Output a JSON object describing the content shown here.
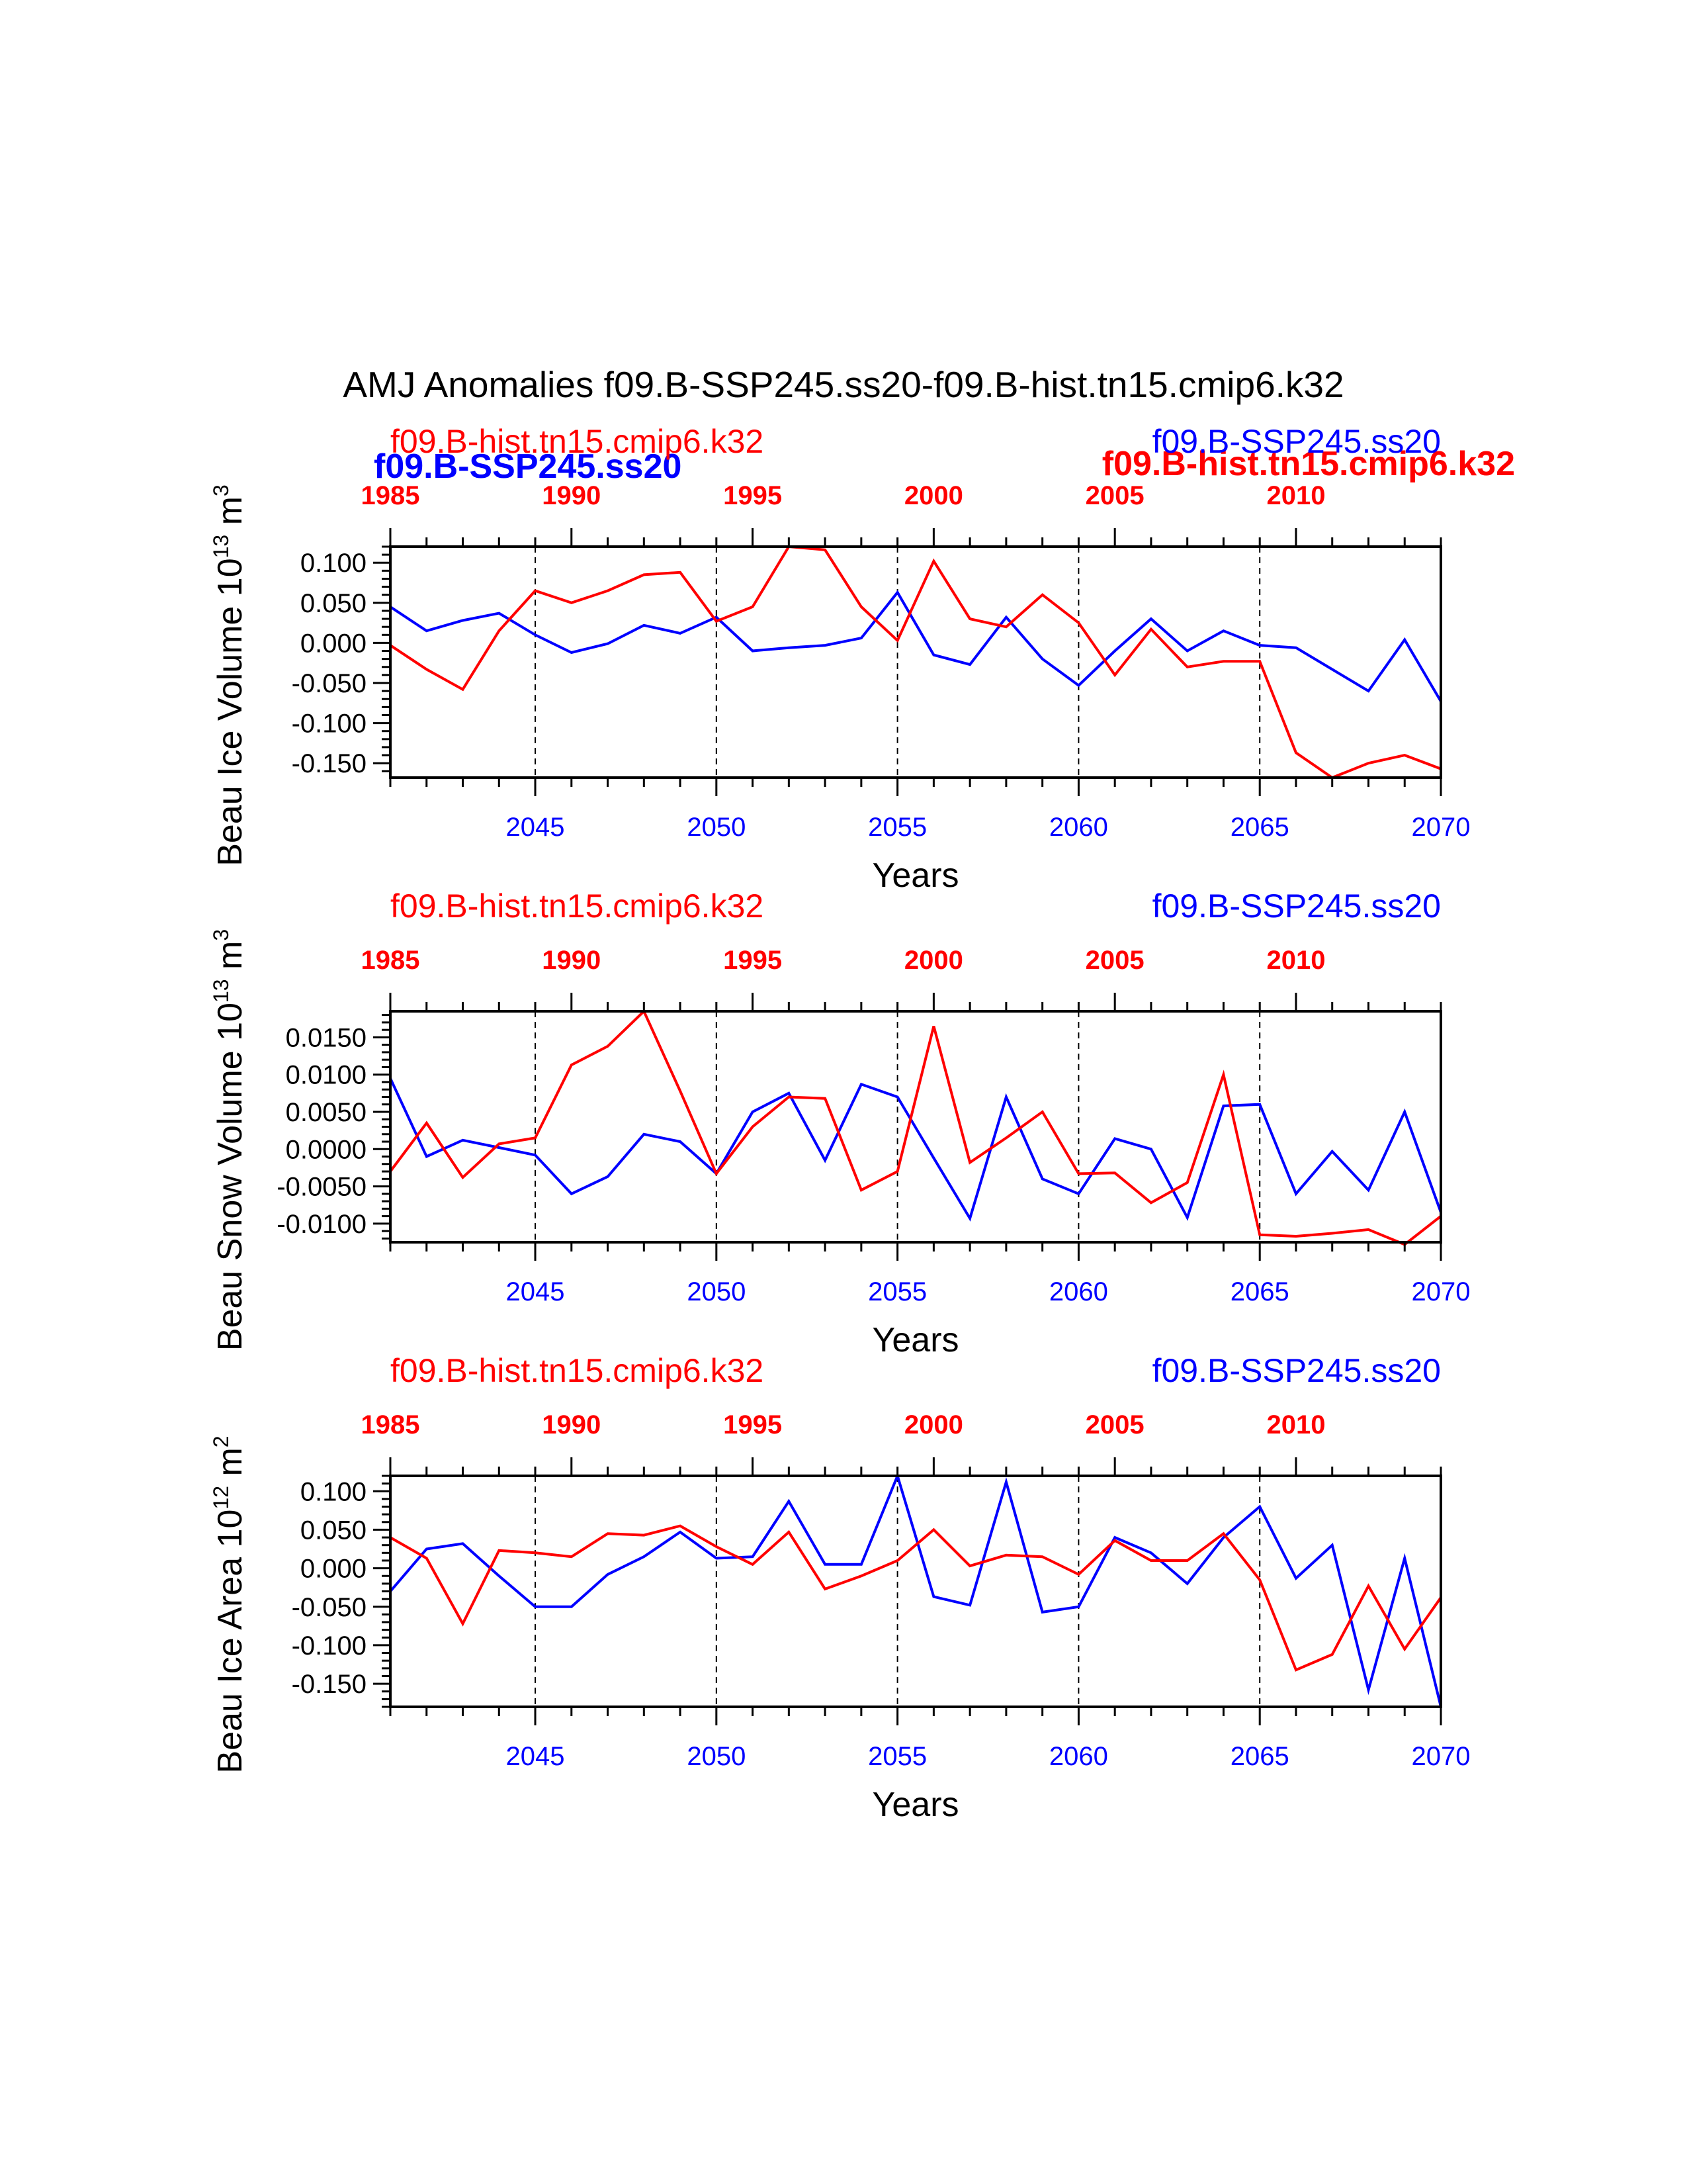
{
  "figure": {
    "title": "AMJ Anomalies f09.B-SSP245.ss20-f09.B-hist.tn15.cmip6.k32",
    "overlap_labels": {
      "blue_left": "f09.B-SSP245.ss20",
      "red_right": "f09.B-hist.tn15.cmip6.k32"
    }
  },
  "colors": {
    "ssp": "#0000ff",
    "hist": "#ff0000",
    "axis": "#000000"
  },
  "chart_data": [
    {
      "type": "line",
      "ylabel": "Beau Ice Volume 10",
      "ylabel_exp": "13",
      "ylabel_unit": " m",
      "ylabel_unit_exp": "3",
      "xlabel": "Years",
      "ylim": [
        -0.168,
        0.12
      ],
      "yticks": [
        0.1,
        0.05,
        0.0,
        -0.05,
        -0.1,
        -0.15
      ],
      "ytick_labels": [
        "0.100",
        "0.050",
        "0.000",
        "-0.050",
        "-0.100",
        "-0.150"
      ],
      "yminor_step": 0.01,
      "bottom_axis": {
        "xlim": [
          2041,
          2070
        ],
        "ticks": [
          2045,
          2050,
          2055,
          2060,
          2065,
          2070
        ],
        "tick_labels": [
          "2045",
          "2050",
          "2055",
          "2060",
          "2065",
          "2070"
        ]
      },
      "top_axis": {
        "xlim": [
          1985,
          2014
        ],
        "ticks": [
          1985,
          1990,
          1995,
          2000,
          2005,
          2010
        ],
        "tick_labels": [
          "1985",
          "1990",
          "1995",
          "2000",
          "2005",
          "2010"
        ]
      },
      "top_left_label": "f09.B-hist.tn15.cmip6.k32",
      "top_right_label": "f09.B-SSP245.ss20",
      "series": [
        {
          "name": "f09.B-SSP245.ss20",
          "axis": "bottom",
          "x": [
            2041,
            2042,
            2043,
            2044,
            2045,
            2046,
            2047,
            2048,
            2049,
            2050,
            2051,
            2052,
            2053,
            2054,
            2055,
            2056,
            2057,
            2058,
            2059,
            2060,
            2061,
            2062,
            2063,
            2064,
            2065,
            2066,
            2067,
            2068,
            2069,
            2070
          ],
          "values": [
            0.045,
            0.015,
            0.028,
            0.037,
            0.01,
            -0.012,
            -0.001,
            0.022,
            0.012,
            0.032,
            -0.01,
            -0.006,
            -0.003,
            0.006,
            0.063,
            -0.015,
            -0.027,
            0.032,
            -0.02,
            -0.053,
            -0.01,
            0.03,
            -0.01,
            0.015,
            -0.003,
            -0.006,
            -0.033,
            -0.06,
            0.004,
            -0.073
          ]
        },
        {
          "name": "f09.B-hist.tn15.cmip6.k32",
          "axis": "top",
          "x": [
            1985,
            1986,
            1987,
            1988,
            1989,
            1990,
            1991,
            1992,
            1993,
            1994,
            1995,
            1996,
            1997,
            1998,
            1999,
            2000,
            2001,
            2002,
            2003,
            2004,
            2005,
            2006,
            2007,
            2008,
            2009,
            2010,
            2011,
            2012,
            2013,
            2014
          ],
          "values": [
            -0.003,
            -0.033,
            -0.058,
            0.015,
            0.065,
            0.05,
            0.065,
            0.085,
            0.088,
            0.027,
            0.045,
            0.12,
            0.116,
            0.045,
            0.003,
            0.102,
            0.03,
            0.02,
            0.06,
            0.025,
            -0.04,
            0.017,
            -0.03,
            -0.023,
            -0.023,
            -0.137,
            -0.168,
            -0.15,
            -0.14,
            -0.157
          ]
        }
      ]
    },
    {
      "type": "line",
      "ylabel": "Beau Snow Volume 10",
      "ylabel_exp": "13",
      "ylabel_unit": " m",
      "ylabel_unit_exp": "3",
      "xlabel": "Years",
      "ylim": [
        -0.0125,
        0.0185
      ],
      "yticks": [
        0.015,
        0.01,
        0.005,
        0.0,
        -0.005,
        -0.01
      ],
      "ytick_labels": [
        "0.0150",
        "0.0100",
        "0.0050",
        "0.0000",
        "-0.0050",
        "-0.0100"
      ],
      "yminor_step": 0.001,
      "bottom_axis": {
        "xlim": [
          2041,
          2070
        ],
        "ticks": [
          2045,
          2050,
          2055,
          2060,
          2065,
          2070
        ],
        "tick_labels": [
          "2045",
          "2050",
          "2055",
          "2060",
          "2065",
          "2070"
        ]
      },
      "top_axis": {
        "xlim": [
          1985,
          2014
        ],
        "ticks": [
          1985,
          1990,
          1995,
          2000,
          2005,
          2010
        ],
        "tick_labels": [
          "1985",
          "1990",
          "1995",
          "2000",
          "2005",
          "2010"
        ]
      },
      "top_left_label": "f09.B-hist.tn15.cmip6.k32",
      "top_right_label": "f09.B-SSP245.ss20",
      "series": [
        {
          "name": "f09.B-SSP245.ss20",
          "axis": "bottom",
          "x": [
            2041,
            2042,
            2043,
            2044,
            2045,
            2046,
            2047,
            2048,
            2049,
            2050,
            2051,
            2052,
            2053,
            2054,
            2055,
            2056,
            2057,
            2058,
            2059,
            2060,
            2061,
            2062,
            2063,
            2064,
            2065,
            2066,
            2067,
            2068,
            2069,
            2070
          ],
          "values": [
            0.0095,
            -0.001,
            0.0012,
            0.0002,
            -0.0008,
            -0.006,
            -0.0037,
            0.002,
            0.001,
            -0.0033,
            0.005,
            0.0075,
            -0.0015,
            0.0087,
            0.007,
            -0.0012,
            -0.0093,
            0.007,
            -0.004,
            -0.006,
            0.0014,
            0.0,
            -0.0092,
            0.0058,
            0.006,
            -0.006,
            -0.0003,
            -0.0055,
            0.005,
            -0.0085
          ]
        },
        {
          "name": "f09.B-hist.tn15.cmip6.k32",
          "axis": "top",
          "x": [
            1985,
            1986,
            1987,
            1988,
            1989,
            1990,
            1991,
            1992,
            1993,
            1994,
            1995,
            1996,
            1997,
            1998,
            1999,
            2000,
            2001,
            2002,
            2003,
            2004,
            2005,
            2006,
            2007,
            2008,
            2009,
            2010,
            2011,
            2012,
            2013,
            2014
          ],
          "values": [
            -0.003,
            0.0035,
            -0.0038,
            0.0007,
            0.0015,
            0.0113,
            0.0138,
            0.0185,
            0.0078,
            -0.0033,
            0.003,
            0.007,
            0.0068,
            -0.0055,
            -0.003,
            0.0165,
            -0.0018,
            0.0015,
            0.005,
            -0.0033,
            -0.0032,
            -0.0072,
            -0.0045,
            0.01,
            -0.0115,
            -0.0117,
            -0.0113,
            -0.0108,
            -0.0128,
            -0.009
          ]
        }
      ]
    },
    {
      "type": "line",
      "ylabel": "Beau Ice Area 10",
      "ylabel_exp": "12",
      "ylabel_unit": " m",
      "ylabel_unit_exp": "2",
      "xlabel": "Years",
      "ylim": [
        -0.18,
        0.12
      ],
      "yticks": [
        0.1,
        0.05,
        0.0,
        -0.05,
        -0.1,
        -0.15
      ],
      "ytick_labels": [
        "0.100",
        "0.050",
        "0.000",
        "-0.050",
        "-0.100",
        "-0.150"
      ],
      "yminor_step": 0.01,
      "bottom_axis": {
        "xlim": [
          2041,
          2070
        ],
        "ticks": [
          2045,
          2050,
          2055,
          2060,
          2065,
          2070
        ],
        "tick_labels": [
          "2045",
          "2050",
          "2055",
          "2060",
          "2065",
          "2070"
        ]
      },
      "top_axis": {
        "xlim": [
          1985,
          2014
        ],
        "ticks": [
          1985,
          1990,
          1995,
          2000,
          2005,
          2010
        ],
        "tick_labels": [
          "1985",
          "1990",
          "1995",
          "2000",
          "2005",
          "2010"
        ]
      },
      "top_left_label": "f09.B-hist.tn15.cmip6.k32",
      "top_right_label": "f09.B-SSP245.ss20",
      "series": [
        {
          "name": "f09.B-SSP245.ss20",
          "axis": "bottom",
          "x": [
            2041,
            2042,
            2043,
            2044,
            2045,
            2046,
            2047,
            2048,
            2049,
            2050,
            2051,
            2052,
            2053,
            2054,
            2055,
            2056,
            2057,
            2058,
            2059,
            2060,
            2061,
            2062,
            2063,
            2064,
            2065,
            2066,
            2067,
            2068,
            2069,
            2070
          ],
          "values": [
            -0.03,
            0.025,
            0.032,
            -0.01,
            -0.05,
            -0.05,
            -0.008,
            0.015,
            0.047,
            0.013,
            0.015,
            0.087,
            0.005,
            0.005,
            0.12,
            -0.037,
            -0.048,
            0.112,
            -0.057,
            -0.05,
            0.04,
            0.02,
            -0.02,
            0.04,
            0.08,
            -0.013,
            0.03,
            -0.158,
            0.013,
            -0.18
          ]
        },
        {
          "name": "f09.B-hist.tn15.cmip6.k32",
          "axis": "top",
          "x": [
            1985,
            1986,
            1987,
            1988,
            1989,
            1990,
            1991,
            1992,
            1993,
            1994,
            1995,
            1996,
            1997,
            1998,
            1999,
            2000,
            2001,
            2002,
            2003,
            2004,
            2005,
            2006,
            2007,
            2008,
            2009,
            2010,
            2011,
            2012,
            2013,
            2014
          ],
          "values": [
            0.04,
            0.013,
            -0.072,
            0.023,
            0.02,
            0.015,
            0.045,
            0.043,
            0.055,
            0.028,
            0.005,
            0.047,
            -0.027,
            -0.01,
            0.01,
            0.05,
            0.003,
            0.017,
            0.015,
            -0.008,
            0.036,
            0.01,
            0.01,
            0.045,
            -0.015,
            -0.132,
            -0.112,
            -0.023,
            -0.105,
            -0.038
          ]
        }
      ]
    }
  ]
}
